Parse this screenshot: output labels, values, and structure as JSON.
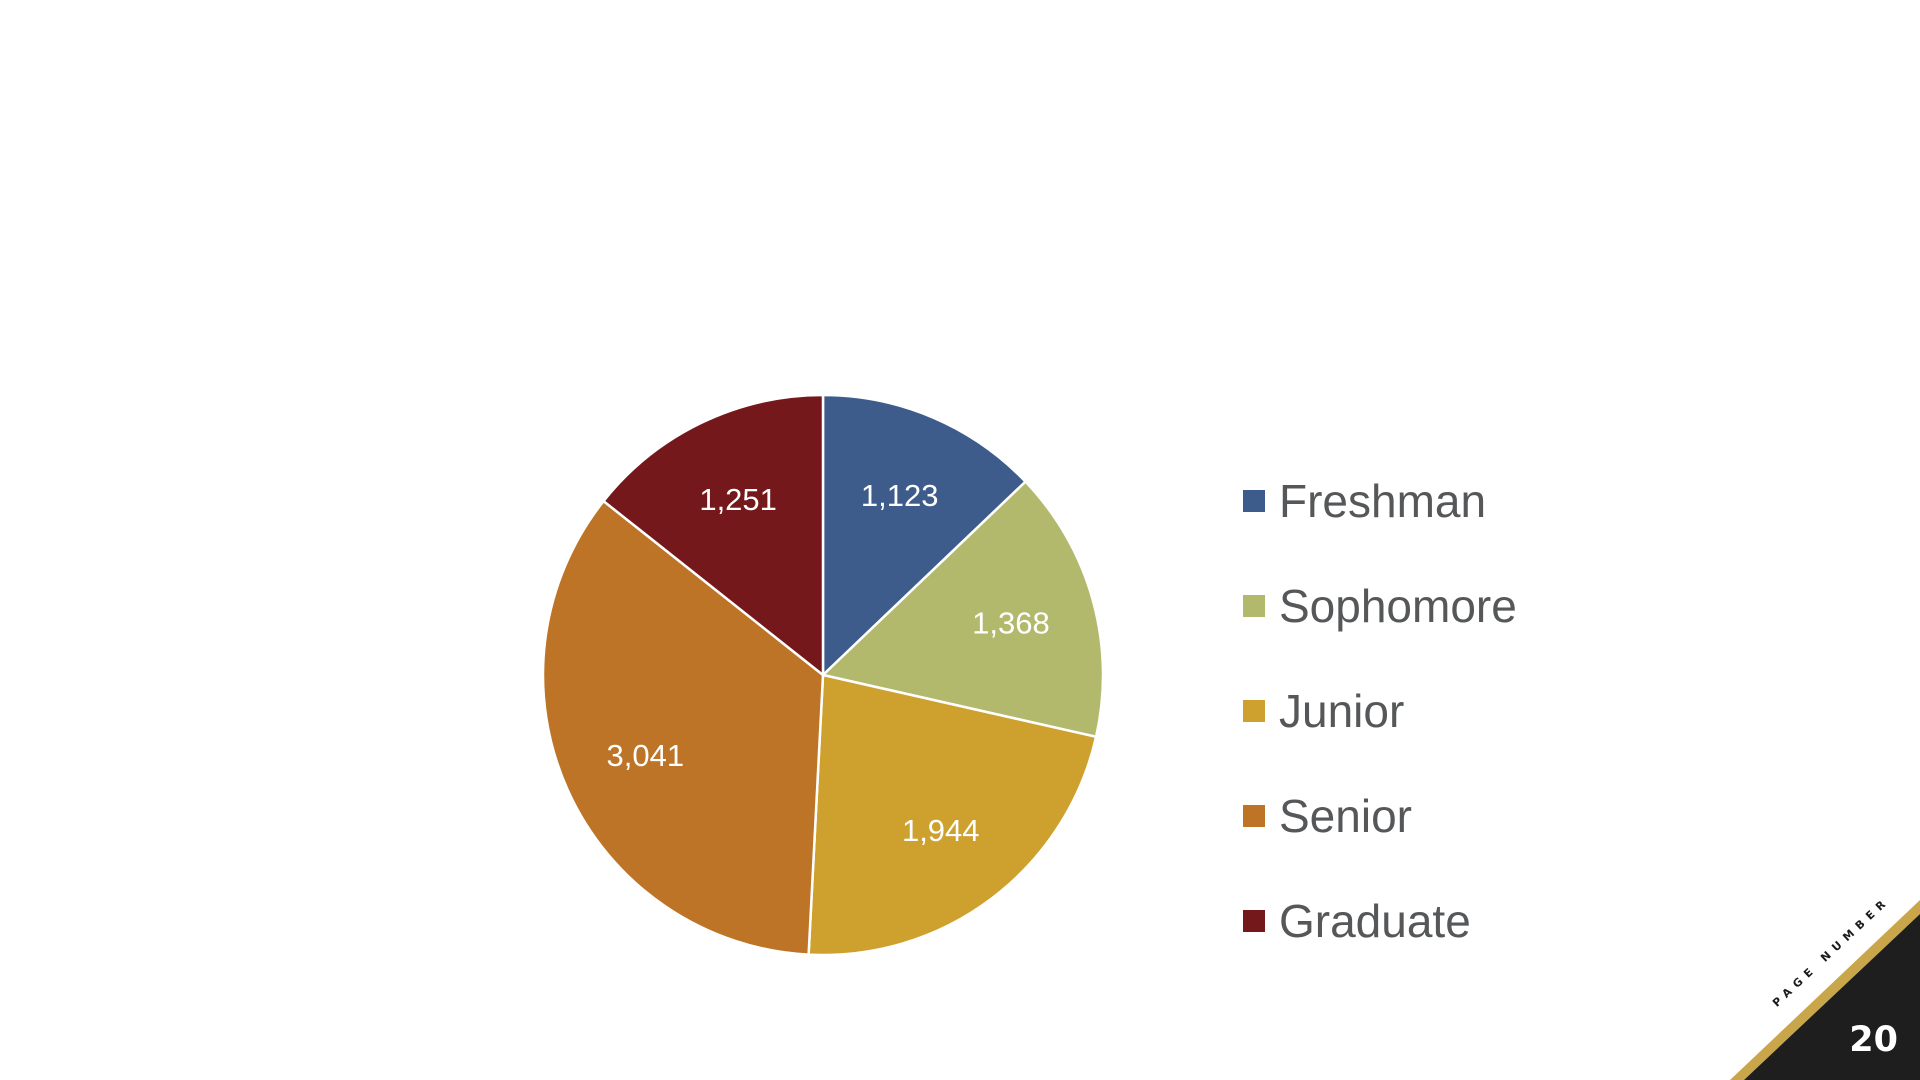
{
  "chart_data": {
    "type": "pie",
    "title": "",
    "categories": [
      "Freshman",
      "Sophomore",
      "Junior",
      "Senior",
      "Graduate"
    ],
    "values": [
      1123,
      1368,
      1944,
      3041,
      1251
    ],
    "value_labels": [
      "1,123",
      "1,368",
      "1,944",
      "3,041",
      "1,251"
    ],
    "colors": [
      "#3d5c8c",
      "#b3b96c",
      "#cea02e",
      "#bd7426",
      "#74181c"
    ],
    "start_angle": "12 o'clock",
    "direction": "clockwise",
    "legend_position": "right"
  },
  "footer": {
    "page_caption": "PAGE NUMBER",
    "page_number": "20",
    "accent_color": "#c9a64a",
    "dark_color": "#1e1e1e"
  }
}
